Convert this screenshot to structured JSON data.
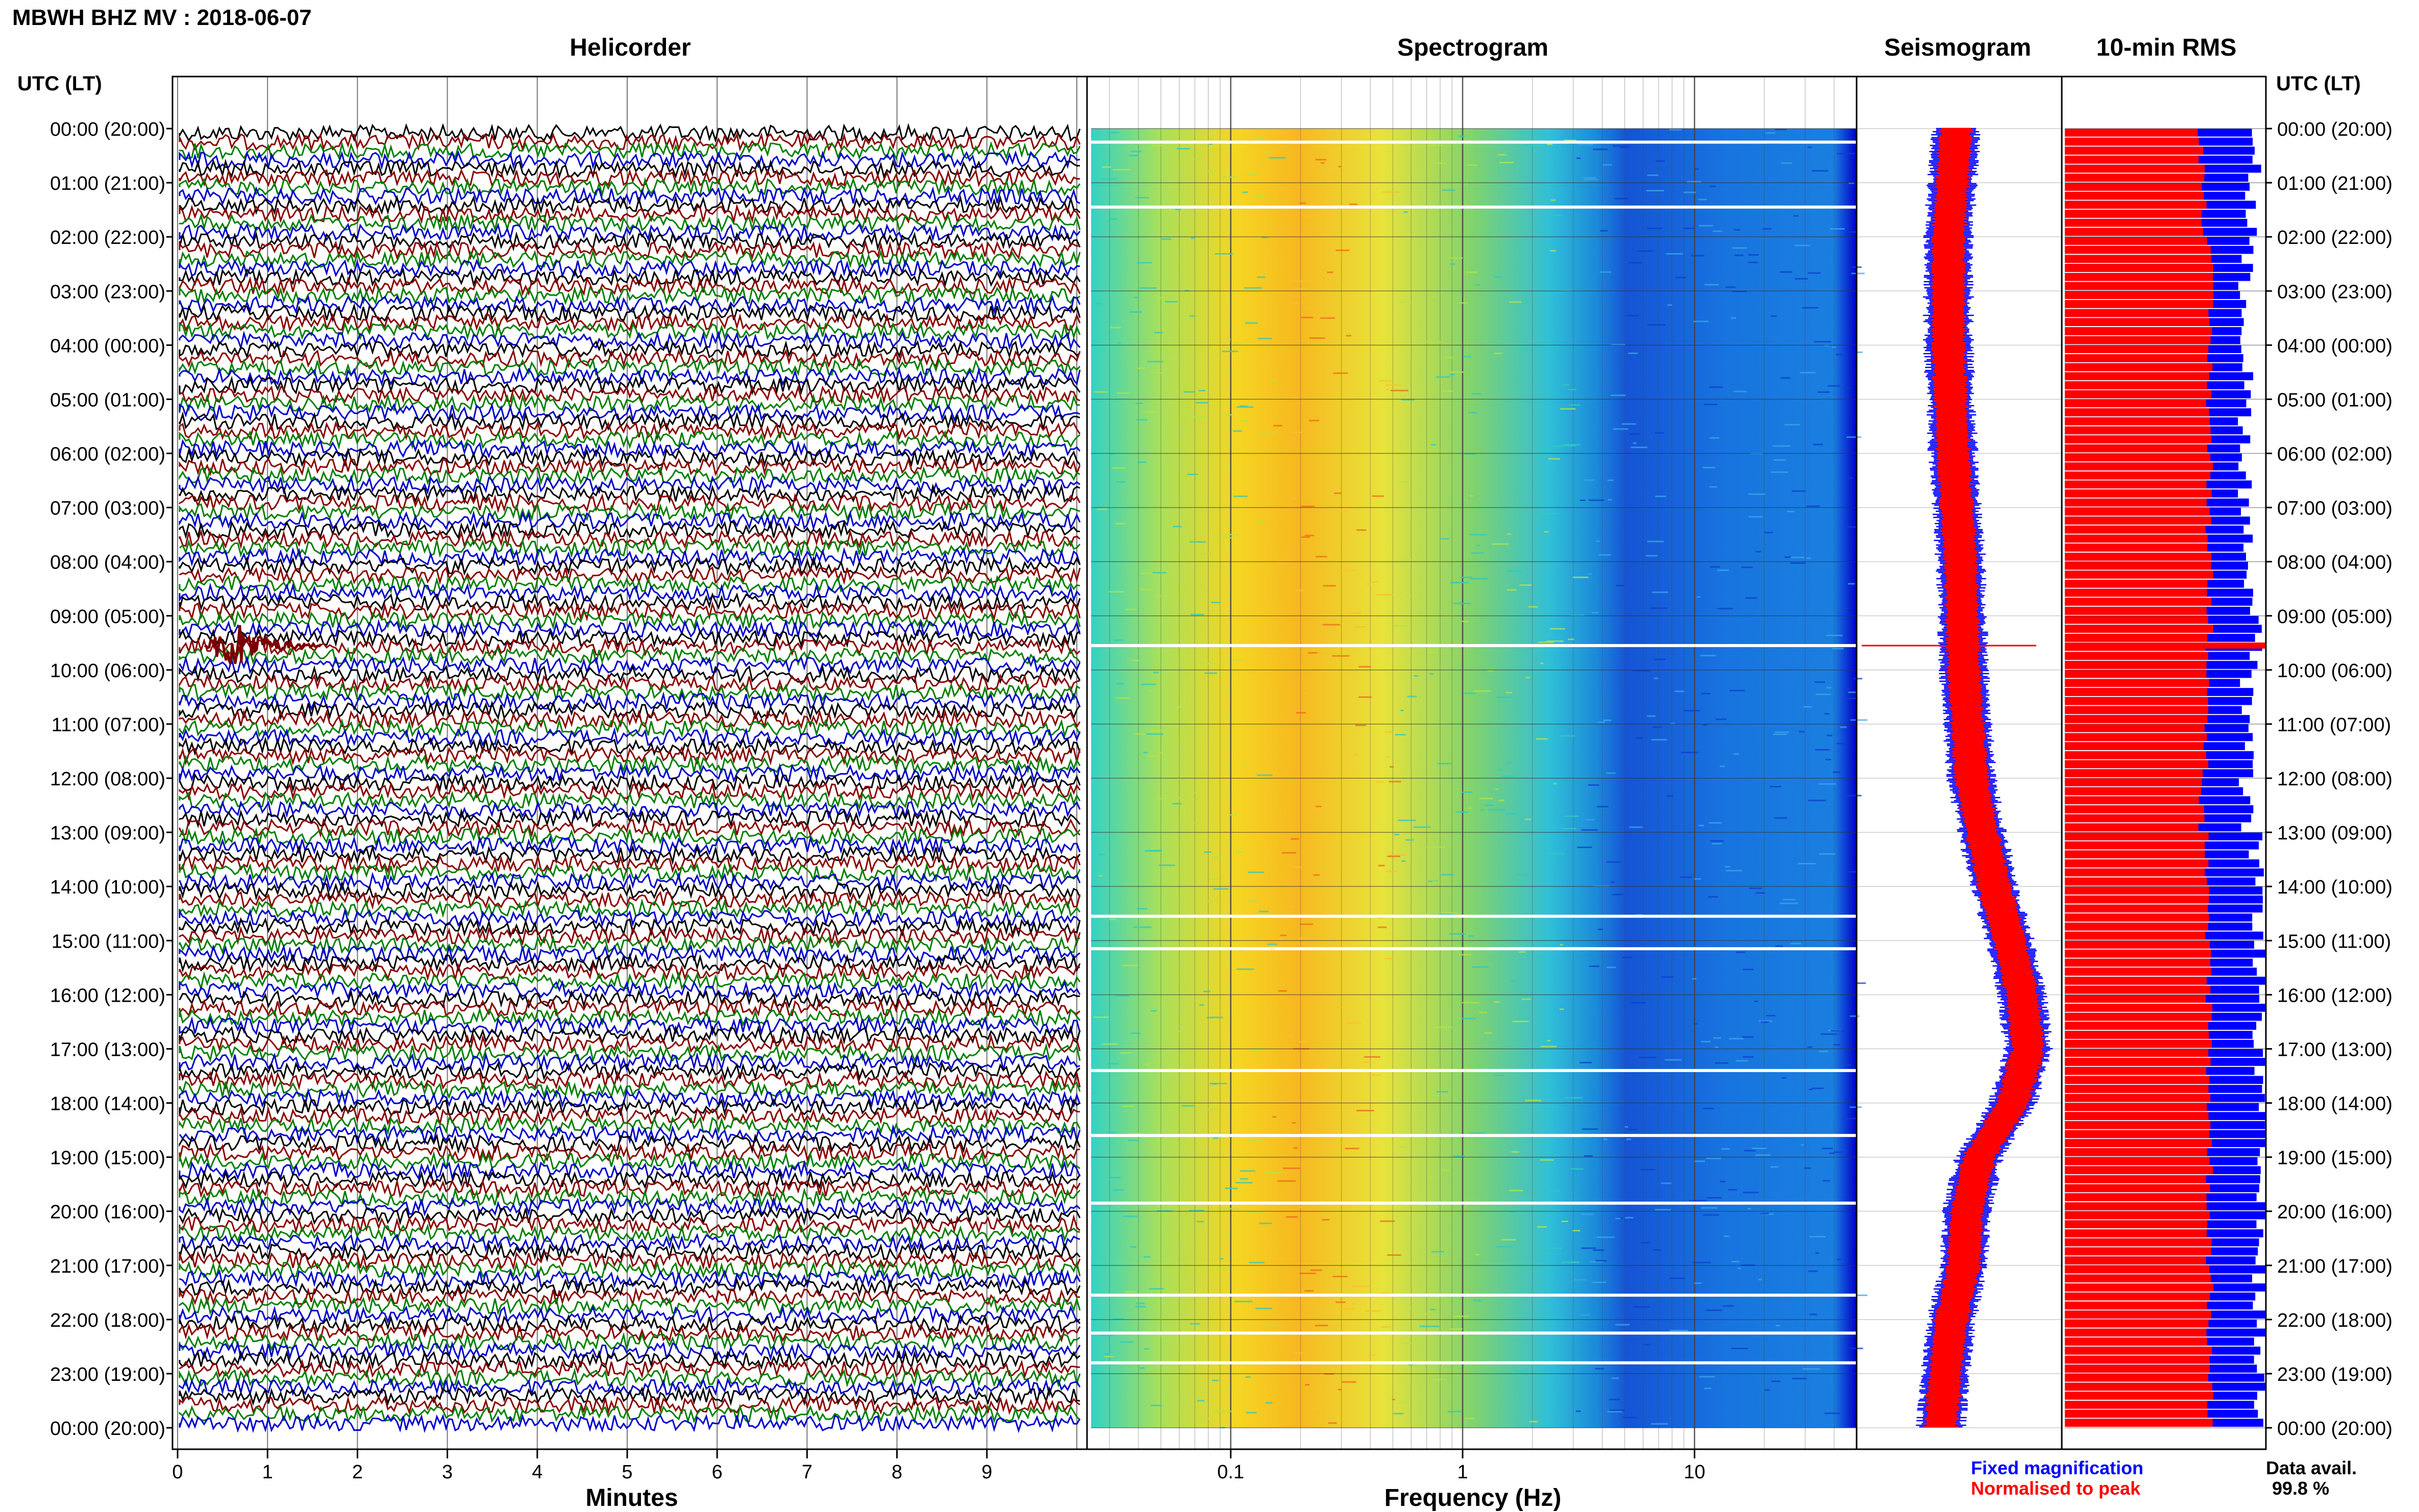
{
  "title": "MBWH BHZ MV : 2018-06-07",
  "panels": {
    "helicorder": "Helicorder",
    "spectrogram": "Spectrogram",
    "seismogram": "Seismogram",
    "rms": "10-min RMS"
  },
  "axis_labels": {
    "left_header": "UTC (LT)",
    "right_header": "UTC (LT)",
    "helicorder_x": "Minutes",
    "spectrogram_x": "Frequency (Hz)"
  },
  "legend": {
    "fixed": "Fixed magnification",
    "normalised": "Normalised to peak",
    "data_avail_label": "Data avail.",
    "data_avail_value": "99.8 %"
  },
  "colors": {
    "trace_cycle": [
      "#000000",
      "#8b0000",
      "#008000",
      "#0000cd"
    ],
    "fixed": "#0000ff",
    "normalised": "#ff0000"
  },
  "chart_data": [
    {
      "type": "line",
      "panel": "Helicorder",
      "xlabel": "Minutes",
      "xlim": [
        0,
        10
      ],
      "x_ticks": [
        "0",
        "1",
        "2",
        "3",
        "4",
        "5",
        "6",
        "7",
        "8",
        "9"
      ],
      "y_tick_labels": [
        "00:00 (20:00)",
        "01:00 (21:00)",
        "02:00 (22:00)",
        "03:00 (23:00)",
        "04:00 (00:00)",
        "05:00 (01:00)",
        "06:00 (02:00)",
        "07:00 (03:00)",
        "08:00 (04:00)",
        "09:00 (05:00)",
        "10:00 (06:00)",
        "11:00 (07:00)",
        "12:00 (08:00)",
        "13:00 (09:00)",
        "14:00 (10:00)",
        "15:00 (11:00)",
        "16:00 (12:00)",
        "17:00 (13:00)",
        "18:00 (14:00)",
        "19:00 (15:00)",
        "20:00 (16:00)",
        "21:00 (17:00)",
        "22:00 (18:00)",
        "23:00 (19:00)",
        "00:00 (20:00)"
      ],
      "traces_per_hour": 6,
      "event": {
        "hour": 9.55,
        "minute_start": 0.3,
        "minute_end": 1.6
      }
    },
    {
      "type": "heatmap",
      "panel": "Spectrogram",
      "xlabel": "Frequency (Hz)",
      "xscale": "log",
      "xlim": [
        0.025,
        50
      ],
      "x_ticks": [
        "0.1",
        "1",
        "10"
      ],
      "ylim_hours": [
        0,
        24
      ],
      "peak_band_hz": [
        0.15,
        0.5
      ],
      "gap_hours": [
        0.25,
        1.45,
        9.55,
        14.55,
        15.15,
        17.4,
        18.6,
        19.85,
        21.55,
        22.25,
        22.8
      ]
    },
    {
      "type": "line",
      "panel": "Seismogram",
      "hours": [
        0,
        2,
        4,
        6,
        8,
        10,
        12,
        13,
        14,
        15,
        16,
        17,
        18,
        19,
        20,
        21,
        22,
        23,
        24
      ],
      "relative_amplitude": [
        0.45,
        0.4,
        0.4,
        0.43,
        0.48,
        0.5,
        0.55,
        0.62,
        0.7,
        0.8,
        0.88,
        0.92,
        0.82,
        0.6,
        0.52,
        0.5,
        0.42,
        0.38,
        0.35
      ],
      "spike_hour": 9.55
    },
    {
      "type": "bar",
      "panel": "10-min RMS",
      "series": [
        {
          "name": "Fixed magnification",
          "color": "#0000ff",
          "level": [
            0.95,
            0.92,
            0.9,
            0.9,
            0.9,
            0.9,
            0.9,
            0.9,
            0.93,
            0.95,
            0.9,
            0.9,
            0.9,
            0.95,
            0.97,
            0.97,
            0.97,
            0.97,
            0.97,
            0.97,
            0.97,
            0.97,
            0.97,
            0.97
          ]
        },
        {
          "name": "Normalised to peak",
          "color": "#ff0000",
          "level": [
            0.68,
            0.7,
            0.72,
            0.72,
            0.72,
            0.72,
            0.72,
            0.72,
            0.72,
            0.72,
            0.72,
            0.7,
            0.68,
            0.7,
            0.7,
            0.72,
            0.72,
            0.72,
            0.72,
            0.72,
            0.72,
            0.72,
            0.72,
            0.72
          ]
        }
      ],
      "spike_hour": 9.55
    }
  ]
}
